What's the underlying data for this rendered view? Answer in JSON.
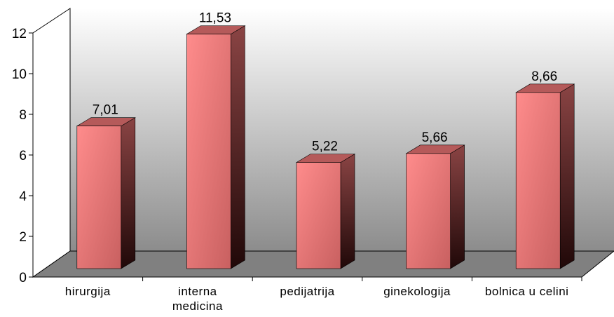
{
  "chart_data": {
    "type": "bar3d",
    "categories": [
      "hirurgija",
      "interna medicina",
      "pedijatrija",
      "ginekologija",
      "bolnica u celini"
    ],
    "values": [
      7.01,
      11.53,
      5.22,
      5.66,
      8.66
    ],
    "value_labels": [
      "7,01",
      "11,53",
      "5,22",
      "5,66",
      "8,66"
    ],
    "color": "#f08080",
    "ylim": [
      0,
      12
    ],
    "yticks": [
      0,
      2,
      4,
      6,
      8,
      10,
      12
    ],
    "grid": false
  }
}
